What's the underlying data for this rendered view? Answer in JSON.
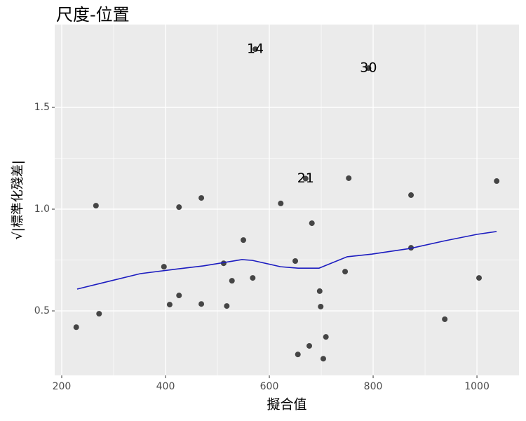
{
  "chart_data": {
    "type": "scatter",
    "title": "尺度-位置",
    "x_label": "擬合值",
    "y_label": "√|標準化殘差|",
    "xlim": [
      186.5,
      1081
    ],
    "ylim": [
      0.183,
      1.907
    ],
    "xticks": [
      200,
      400,
      600,
      800,
      1000
    ],
    "yticks": [
      {
        "value": 0.5,
        "label": "0.5"
      },
      {
        "value": 1.0,
        "label": "1.0"
      },
      {
        "value": 1.5,
        "label": "1.5"
      }
    ],
    "grid": true,
    "minor_grid": true,
    "series": [
      {
        "color": "#333333",
        "x": [
          228,
          272,
          266,
          397,
          408,
          426,
          426,
          469,
          469,
          512,
          518,
          528,
          550,
          568,
          573,
          622,
          650,
          655,
          677,
          682,
          697,
          699,
          704,
          709,
          746,
          753,
          791,
          873,
          873,
          938,
          1004,
          1038,
          670
        ],
        "values": [
          0.42,
          0.486,
          1.017,
          0.717,
          0.531,
          0.576,
          1.01,
          0.534,
          1.055,
          0.734,
          0.524,
          0.648,
          0.848,
          0.662,
          1.786,
          1.028,
          0.745,
          0.286,
          0.328,
          0.931,
          0.597,
          0.521,
          0.265,
          0.372,
          0.693,
          1.152,
          1.693,
          1.069,
          0.81,
          0.459,
          0.662,
          1.138,
          1.15
        ],
        "point_labels": [
          null,
          null,
          null,
          null,
          null,
          null,
          null,
          null,
          null,
          null,
          null,
          null,
          null,
          null,
          "14",
          null,
          null,
          null,
          null,
          null,
          null,
          null,
          null,
          null,
          null,
          null,
          "30",
          null,
          null,
          null,
          null,
          null,
          "21"
        ]
      },
      {
        "type": "line",
        "color": "#1c1cc0",
        "x": [
          229.7,
          283.8,
          351.4,
          425.7,
          473,
          547.3,
          567.6,
          621.6,
          655.4,
          695.9,
          750,
          797.3,
          871.6,
          939.2,
          1000,
          1037.8
        ],
        "values": [
          0.607,
          0.641,
          0.683,
          0.707,
          0.721,
          0.752,
          0.748,
          0.717,
          0.71,
          0.71,
          0.766,
          0.779,
          0.807,
          0.845,
          0.876,
          0.89
        ]
      }
    ]
  }
}
